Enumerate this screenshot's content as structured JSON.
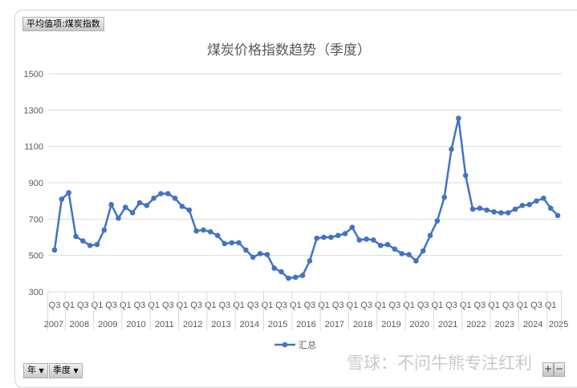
{
  "value_field_button": "平均值项:煤炭指数",
  "filters": [
    {
      "label": "年",
      "icon": "dropdown-arrow-icon"
    },
    {
      "label": "季度",
      "icon": "dropdown-arrow-icon"
    }
  ],
  "watermark": "雪球：不问牛熊专注红利",
  "zoom_buttons": {
    "plus": "+",
    "minus": "−"
  },
  "chart_data": {
    "type": "line",
    "title": "煤炭价格指数趋势（季度）",
    "xlabel": "",
    "ylabel": "",
    "ylim": [
      300,
      1500
    ],
    "yticks": [
      300,
      500,
      700,
      900,
      1100,
      1300,
      1500
    ],
    "grid": true,
    "legend_position": "bottom",
    "color": "#4472c4",
    "years": [
      "2007",
      "2008",
      "2009",
      "2010",
      "2011",
      "2012",
      "2013",
      "2014",
      "2015",
      "2016",
      "2017",
      "2018",
      "2019",
      "2020",
      "2021",
      "2022",
      "2023",
      "2024",
      "2025"
    ],
    "year_quarter_counts": [
      2,
      4,
      4,
      4,
      4,
      4,
      4,
      4,
      4,
      4,
      4,
      4,
      4,
      4,
      4,
      4,
      4,
      4,
      2
    ],
    "quarter_labels": [
      "Q3",
      "",
      "Q1",
      "",
      "Q3",
      "",
      "Q1",
      "",
      "Q3",
      "",
      "Q1",
      "",
      "Q3",
      "",
      "Q1",
      "",
      "Q3",
      "",
      "Q1",
      "",
      "Q3",
      "",
      "Q1",
      "",
      "Q3",
      "",
      "Q1",
      "",
      "Q3",
      "",
      "Q1",
      "",
      "Q3",
      "",
      "Q1",
      "",
      "Q3",
      "",
      "Q1",
      "",
      "Q3",
      "",
      "Q1",
      "",
      "Q3",
      "",
      "Q1",
      "",
      "Q3",
      "",
      "Q1",
      "",
      "Q3",
      "",
      "Q1",
      "",
      "Q3",
      "",
      "Q1",
      "",
      "Q3",
      "",
      "Q1",
      "",
      "Q3",
      "",
      "Q1",
      "",
      "Q3",
      "",
      "Q1",
      ""
    ],
    "series": [
      {
        "name": "汇总",
        "values": [
          530,
          810,
          845,
          605,
          580,
          555,
          560,
          640,
          780,
          705,
          765,
          735,
          790,
          775,
          815,
          840,
          840,
          815,
          770,
          750,
          635,
          640,
          630,
          610,
          565,
          570,
          570,
          530,
          490,
          510,
          505,
          430,
          410,
          375,
          380,
          390,
          470,
          595,
          600,
          600,
          610,
          620,
          655,
          585,
          590,
          585,
          555,
          560,
          535,
          510,
          505,
          470,
          525,
          610,
          690,
          820,
          1085,
          1255,
          940,
          755,
          760,
          750,
          740,
          735,
          735,
          755,
          775,
          780,
          800,
          815,
          760,
          720
        ]
      }
    ]
  }
}
